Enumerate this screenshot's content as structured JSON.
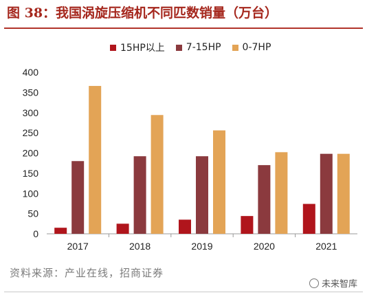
{
  "figure": {
    "title": "图 38：我国涡旋压缩机不同匹数销量（万台）",
    "source": "资料来源：产业在线，招商证券",
    "watermark": "未来智库"
  },
  "colors": {
    "title": "#a5271d",
    "series": [
      "#b0151c",
      "#8b3a3e",
      "#e3a456"
    ]
  },
  "chart_data": {
    "type": "bar",
    "categories": [
      "2017",
      "2018",
      "2019",
      "2020",
      "2021"
    ],
    "series": [
      {
        "name": "15HP以上",
        "values": [
          15,
          25,
          35,
          44,
          74
        ]
      },
      {
        "name": "7-15HP",
        "values": [
          180,
          192,
          192,
          170,
          198
        ]
      },
      {
        "name": "0-7HP",
        "values": [
          366,
          294,
          256,
          202,
          198
        ]
      }
    ],
    "ylim": [
      0,
      400
    ],
    "yticks": [
      "0",
      "50",
      "100",
      "150",
      "200",
      "250",
      "300",
      "350",
      "400"
    ],
    "legend": "top",
    "grid": false
  }
}
